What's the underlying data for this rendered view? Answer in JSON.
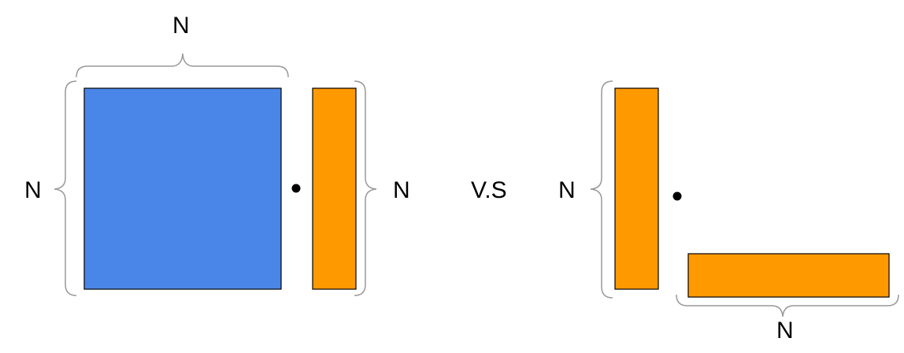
{
  "labels": {
    "top_n": "N",
    "left_n": "N",
    "right_n": "N",
    "versus": "V.S",
    "second_left_n": "N",
    "bottom_n": "N"
  },
  "colors": {
    "matrix_blue": "#4a86e8",
    "vector_orange": "#ff9900",
    "outline": "#000000",
    "brace": "#999999"
  }
}
